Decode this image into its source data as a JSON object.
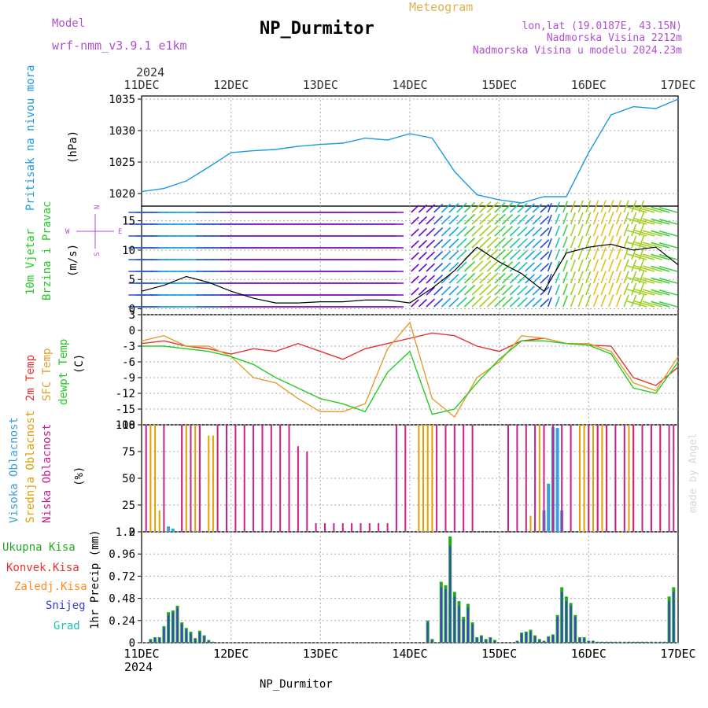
{
  "header": {
    "model_label": "Model",
    "model_name": "wrf-nmm_v3.9.1 e1km",
    "title": "NP_Durmitor",
    "product": "Meteogram",
    "location": "lon,lat (19.0187E, 43.15N)",
    "elevation": "Nadmorska Visina 2212m",
    "model_elevation": "Nadmorska Visina u modelu 2024.23m",
    "footer_station": "NP_Durmitor",
    "credit": "made by Angel"
  },
  "time_axis": {
    "year": "2024",
    "labels": [
      "11DEC",
      "12DEC",
      "13DEC",
      "14DEC",
      "15DEC",
      "16DEC",
      "17DEC"
    ]
  },
  "colors": {
    "pressure": "#1e9be0",
    "wind_speed": "#000000",
    "t2m": "#e83030",
    "tsfc": "#e0a030",
    "dewpoint": "#22cc22",
    "cloud_high": "#3aa0e0",
    "cloud_mid": "#e0a000",
    "cloud_low": "#c8208c",
    "precip_total": "#22aa22",
    "precip_conv": "#e83030",
    "precip_frozen": "#ff8c20",
    "precip_snow": "#3c3cd8",
    "precip_graupel": "#20c0b0",
    "label_magenta": "#b050d0",
    "label_orange": "#e0b050"
  },
  "chart_data": [
    {
      "type": "line",
      "panel": "pressure",
      "ylabel": "(hPa)",
      "side_labels": [
        "Pritisak na nivou mora"
      ],
      "ylim": [
        1018,
        1035.5
      ],
      "yticks": [
        1020,
        1025,
        1030,
        1035
      ],
      "x_days": [
        0,
        0.25,
        0.5,
        0.75,
        1,
        1.25,
        1.5,
        1.75,
        2,
        2.25,
        2.5,
        2.75,
        3,
        3.25,
        3.5,
        3.75,
        4,
        4.25,
        4.5,
        4.75,
        5,
        5.25,
        5.5,
        5.75,
        6
      ],
      "series": [
        {
          "values": [
            1020.3,
            1020.8,
            1022.0,
            1024.2,
            1026.5,
            1026.8,
            1027.0,
            1027.5,
            1027.8,
            1028.0,
            1028.8,
            1028.5,
            1029.5,
            1028.8,
            1023.5,
            1019.8,
            1019.0,
            1018.5,
            1019.5,
            1019.5,
            1026.5,
            1032.5,
            1033.8,
            1033.5,
            1035.0
          ]
        }
      ]
    },
    {
      "type": "line",
      "panel": "wind",
      "ylabel": "(m/s)",
      "side_labels": [
        "10m Vjetar",
        "Brzina i Pravac"
      ],
      "compass_labels": [
        "N",
        "W",
        "E",
        "S"
      ],
      "ylim": [
        -1,
        17.5
      ],
      "yticks": [
        0,
        5,
        10,
        15
      ],
      "x_days": [
        0,
        0.25,
        0.5,
        0.75,
        1,
        1.25,
        1.5,
        1.75,
        2,
        2.25,
        2.5,
        2.75,
        3,
        3.25,
        3.5,
        3.75,
        4,
        4.25,
        4.5,
        4.75,
        5,
        5.25,
        5.5,
        5.75,
        6
      ],
      "series": [
        {
          "values": [
            3.0,
            4.0,
            5.5,
            4.5,
            3.0,
            1.8,
            1.0,
            1.0,
            1.2,
            1.2,
            1.5,
            1.5,
            1.0,
            3.5,
            6.5,
            10.5,
            8.0,
            6.0,
            3.0,
            9.5,
            10.5,
            11.0,
            10.0,
            10.5,
            7.5
          ]
        }
      ]
    },
    {
      "type": "line",
      "panel": "temperature",
      "ylabel": "(C)",
      "side_labels": [
        "2m Temp",
        "SFC Temp",
        "dewpt Temp"
      ],
      "ylim": [
        -18,
        3
      ],
      "yticks": [
        3,
        0,
        -3,
        -6,
        -9,
        -12,
        -15,
        -18
      ],
      "x_days": [
        0,
        0.25,
        0.5,
        0.75,
        1,
        1.25,
        1.5,
        1.75,
        2,
        2.25,
        2.5,
        2.75,
        3,
        3.25,
        3.5,
        3.75,
        4,
        4.25,
        4.5,
        4.75,
        5,
        5.25,
        5.5,
        5.75,
        6
      ],
      "series": [
        {
          "name": "2m Temp",
          "values": [
            -2.5,
            -2.0,
            -3.0,
            -3.5,
            -4.5,
            -3.5,
            -4.0,
            -2.5,
            -4.0,
            -5.5,
            -3.5,
            -2.5,
            -1.5,
            -0.5,
            -1.0,
            -3.0,
            -4.0,
            -2.0,
            -1.5,
            -2.5,
            -2.8,
            -3.0,
            -9.0,
            -10.5,
            -7.0
          ]
        },
        {
          "name": "SFC Temp",
          "values": [
            -2.0,
            -1.0,
            -3.0,
            -3.0,
            -5.0,
            -9.0,
            -10.0,
            -13.0,
            -15.5,
            -15.5,
            -14.0,
            -3.5,
            1.5,
            -13.0,
            -16.5,
            -9.0,
            -6.0,
            -1.0,
            -1.5,
            -2.5,
            -2.5,
            -4.0,
            -10.0,
            -11.5,
            -5.0
          ]
        },
        {
          "name": "dewpt Temp",
          "values": [
            -3.0,
            -3.0,
            -3.5,
            -4.0,
            -5.0,
            -6.5,
            -9.0,
            -11.0,
            -13.0,
            -14.0,
            -15.5,
            -8.0,
            -4.0,
            -16.0,
            -15.0,
            -10.0,
            -5.5,
            -2.0,
            -2.0,
            -2.5,
            -2.8,
            -4.5,
            -11.0,
            -12.0,
            -6.0
          ]
        }
      ]
    },
    {
      "type": "bar",
      "panel": "clouds",
      "ylabel": "(%)",
      "side_labels": [
        "Visoka Oblacnost",
        "Srednja Oblacnost",
        "Niska Oblacnost"
      ],
      "ylim": [
        0,
        100
      ],
      "yticks": [
        0,
        25,
        50,
        75,
        100
      ],
      "series": [
        {
          "name": "Visoka Oblacnost",
          "x_days": [
            0.3,
            0.35,
            4.5,
            4.55,
            4.6,
            4.65,
            4.7
          ],
          "values": [
            5,
            3,
            20,
            45,
            98,
            97,
            20
          ]
        },
        {
          "name": "Srednja Oblacnost",
          "x_days": [
            0.1,
            0.15,
            0.2,
            0.45,
            0.5,
            0.55,
            0.6,
            0.65,
            0.75,
            0.8,
            3.1,
            3.15,
            3.2,
            3.25,
            4.35,
            4.4,
            4.45,
            4.5,
            4.9,
            4.95,
            5.0,
            5.05,
            5.1,
            5.15,
            5.2,
            5.3,
            5.45,
            5.5,
            5.6,
            5.7,
            5.8
          ],
          "values": [
            100,
            100,
            20,
            100,
            100,
            100,
            100,
            100,
            90,
            90,
            100,
            100,
            100,
            100,
            15,
            10,
            100,
            100,
            100,
            100,
            100,
            100,
            100,
            100,
            100,
            55,
            100,
            100,
            100,
            100,
            100
          ]
        },
        {
          "name": "Niska Oblacnost",
          "x_days": [
            0.05,
            0.25,
            0.45,
            0.55,
            0.65,
            0.85,
            0.95,
            1.05,
            1.15,
            1.25,
            1.35,
            1.45,
            1.55,
            1.65,
            1.75,
            1.85,
            1.95,
            2.05,
            2.15,
            2.25,
            2.35,
            2.45,
            2.55,
            2.65,
            2.75,
            2.85,
            2.95,
            3.3,
            3.4,
            3.5,
            3.6,
            3.7,
            4.1,
            4.2,
            4.3,
            4.4,
            4.5,
            4.6,
            4.7,
            4.8,
            5.0,
            5.1,
            5.2,
            5.3,
            5.4,
            5.5,
            5.6,
            5.7,
            5.8,
            5.9,
            5.95
          ],
          "values": [
            100,
            100,
            100,
            100,
            100,
            100,
            100,
            100,
            100,
            100,
            100,
            100,
            100,
            100,
            80,
            75,
            8,
            8,
            8,
            8,
            8,
            8,
            8,
            8,
            8,
            100,
            100,
            100,
            100,
            100,
            100,
            100,
            100,
            100,
            100,
            100,
            100,
            100,
            100,
            100,
            100,
            100,
            100,
            100,
            100,
            100,
            100,
            100,
            100,
            100,
            100
          ]
        }
      ]
    },
    {
      "type": "bar",
      "panel": "precipitation",
      "ylabel": "1hr Precip (mm)",
      "side_labels": [
        "Ukupna Kisa",
        "Konvek.Kisa",
        "Zaledj.Kisa",
        "Snijeg",
        "Grad"
      ],
      "ylim": [
        0,
        1.2
      ],
      "yticks": [
        "0",
        "0.24",
        "0.48",
        "0.72",
        "0.96",
        "1.2"
      ],
      "x_days": [
        0.1,
        0.15,
        0.2,
        0.25,
        0.3,
        0.35,
        0.4,
        0.45,
        0.5,
        0.55,
        0.6,
        0.65,
        0.7,
        0.75,
        0.8,
        3.2,
        3.25,
        3.35,
        3.4,
        3.45,
        3.5,
        3.55,
        3.6,
        3.65,
        3.7,
        3.75,
        3.8,
        3.85,
        3.9,
        3.95,
        4.2,
        4.25,
        4.3,
        4.35,
        4.4,
        4.45,
        4.5,
        4.55,
        4.6,
        4.65,
        4.7,
        4.75,
        4.8,
        4.85,
        4.9,
        4.95,
        5.0,
        5.05,
        5.1,
        5.15,
        5.2,
        5.25,
        5.3,
        5.35,
        5.4,
        5.45,
        5.5,
        5.55,
        5.6,
        5.65,
        5.7,
        5.75,
        5.8,
        5.85,
        5.9,
        5.95
      ],
      "series": [
        {
          "name": "Ukupna Kisa",
          "values": [
            0.04,
            0.06,
            0.06,
            0.18,
            0.33,
            0.35,
            0.4,
            0.22,
            0.16,
            0.12,
            0.05,
            0.13,
            0.08,
            0.03,
            0.01,
            0.24,
            0.04,
            0.66,
            0.62,
            1.15,
            0.55,
            0.45,
            0.28,
            0.42,
            0.22,
            0.06,
            0.08,
            0.04,
            0.06,
            0.03,
            0.02,
            0.11,
            0.12,
            0.14,
            0.08,
            0.04,
            0.02,
            0.07,
            0.09,
            0.3,
            0.6,
            0.5,
            0.43,
            0.3,
            0.06,
            0.06,
            0.02,
            0.02,
            0.01,
            0.01,
            0.01,
            0.01,
            0.01,
            0.01,
            0.01,
            0.01,
            0.01,
            0.01,
            0.01,
            0.01,
            0.01,
            0.01,
            0.01,
            0.01,
            0.5,
            0.6
          ]
        },
        {
          "name": "Snijeg",
          "values": [
            0.03,
            0.05,
            0.05,
            0.16,
            0.3,
            0.33,
            0.38,
            0.2,
            0.14,
            0.1,
            0.04,
            0.11,
            0.07,
            0.02,
            0.01,
            0.22,
            0.03,
            0.6,
            0.58,
            1.05,
            0.5,
            0.4,
            0.25,
            0.38,
            0.2,
            0.05,
            0.07,
            0.03,
            0.05,
            0.02,
            0.02,
            0.1,
            0.11,
            0.12,
            0.07,
            0.03,
            0.02,
            0.06,
            0.08,
            0.28,
            0.55,
            0.45,
            0.4,
            0.28,
            0.05,
            0.05,
            0.02,
            0.02,
            0.01,
            0.01,
            0.01,
            0.01,
            0.01,
            0.01,
            0.01,
            0.01,
            0.01,
            0.01,
            0.01,
            0.01,
            0.01,
            0.01,
            0.01,
            0.01,
            0.45,
            0.55
          ]
        }
      ]
    }
  ]
}
